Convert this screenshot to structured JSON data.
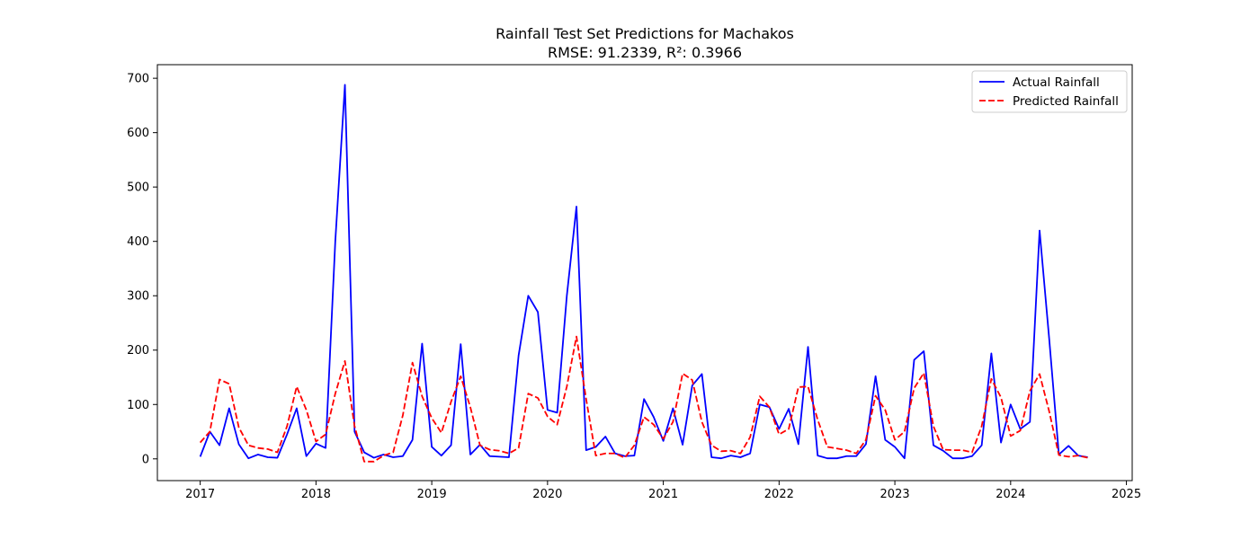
{
  "chart_data": {
    "type": "line",
    "title": "Rainfall Test Set Predictions for Machakos",
    "subtitle": "RMSE: 91.2339, R²: 0.3966",
    "xlabel": "",
    "ylabel": "",
    "xlim": [
      2016.63,
      2025.05
    ],
    "ylim": [
      -40,
      725
    ],
    "x_ticks": [
      2017,
      2018,
      2019,
      2020,
      2021,
      2022,
      2023,
      2024,
      2025
    ],
    "y_ticks": [
      0,
      100,
      200,
      300,
      400,
      500,
      600,
      700
    ],
    "grid": false,
    "legend_position": "upper right",
    "x_start": 2017,
    "x_step_months": 1,
    "series": [
      {
        "name": "Actual Rainfall",
        "color": "#0000ff",
        "style": "solid",
        "values": [
          4,
          50,
          25,
          93,
          27,
          1,
          8,
          3,
          2,
          45,
          93,
          5,
          28,
          20,
          400,
          688,
          50,
          12,
          2,
          8,
          3,
          5,
          35,
          212,
          22,
          6,
          25,
          211,
          8,
          26,
          5,
          4,
          3,
          190,
          300,
          270,
          90,
          85,
          300,
          464,
          16,
          22,
          41,
          10,
          5,
          6,
          110,
          77,
          33,
          93,
          26,
          135,
          156,
          3,
          1,
          6,
          3,
          10,
          100,
          95,
          55,
          92,
          27,
          206,
          6,
          1,
          1,
          5,
          5,
          27,
          152,
          35,
          22,
          1,
          182,
          198,
          25,
          15,
          1,
          1,
          5,
          25,
          194,
          30,
          100,
          55,
          68,
          420,
          220,
          8,
          24,
          6,
          3
        ]
      },
      {
        "name": "Predicted Rainfall",
        "color": "#ff0000",
        "style": "dashed",
        "values": [
          30,
          50,
          146,
          138,
          58,
          25,
          20,
          18,
          12,
          60,
          133,
          90,
          32,
          45,
          120,
          180,
          60,
          -5,
          -5,
          6,
          12,
          80,
          177,
          115,
          75,
          48,
          105,
          152,
          95,
          25,
          17,
          15,
          10,
          20,
          120,
          112,
          78,
          63,
          133,
          225,
          110,
          6,
          10,
          10,
          2,
          25,
          77,
          63,
          37,
          68,
          157,
          145,
          68,
          25,
          14,
          15,
          10,
          40,
          115,
          95,
          45,
          55,
          132,
          133,
          72,
          22,
          19,
          16,
          10,
          35,
          116,
          90,
          35,
          50,
          130,
          158,
          60,
          17,
          16,
          16,
          12,
          60,
          147,
          113,
          42,
          52,
          125,
          156,
          87,
          7,
          4,
          6,
          2
        ]
      }
    ]
  }
}
